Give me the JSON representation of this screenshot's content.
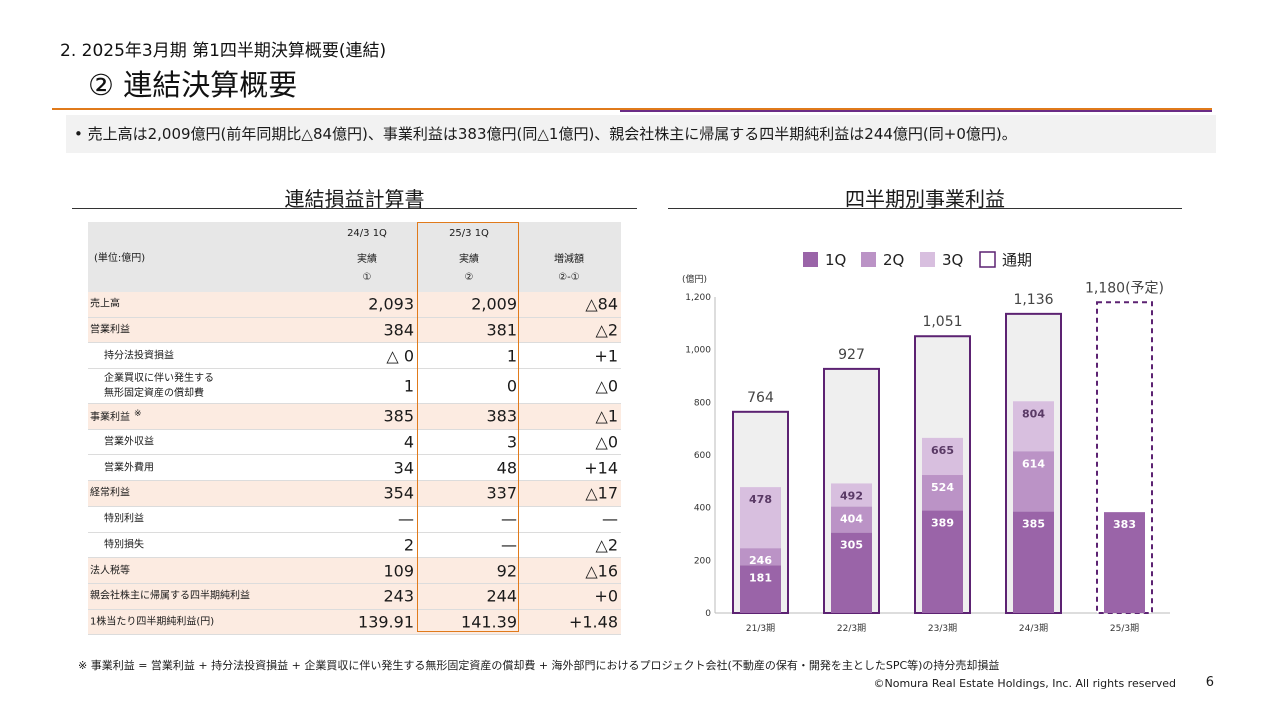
{
  "header": {
    "heading": "2. 2025年3月期 第1四半期決算概要(連結)",
    "title": "② 連結決算概要"
  },
  "summary": "• 売上高は2,009億円(前年同期比△84億円)、事業利益は383億円(同△1億円)、親会社株主に帰属する四半期純利益は244億円(同+0億円)。",
  "table": {
    "title": "連結損益計算書",
    "unit": "(単位:億円)",
    "columns": [
      {
        "period": "24/3 1Q",
        "label": "実績",
        "mark": "①"
      },
      {
        "period": "25/3 1Q",
        "label": "実績",
        "mark": "②"
      },
      {
        "period": "",
        "label": "増減額",
        "mark": "②-①"
      }
    ],
    "rows": [
      {
        "label": "売上高",
        "v1": "2,093",
        "v2": "2,009",
        "v3": "△84",
        "hl": true,
        "indent": false
      },
      {
        "label": "営業利益",
        "v1": "384",
        "v2": "381",
        "v3": "△2",
        "hl": true,
        "indent": false
      },
      {
        "label": "持分法投資損益",
        "v1": "△ 0",
        "v2": "1",
        "v3": "+1",
        "hl": false,
        "indent": true
      },
      {
        "label": "企業買収に伴い発生する\n無形固定資産の償却費",
        "v1": "1",
        "v2": "0",
        "v3": "△0",
        "hl": false,
        "indent": true,
        "tall": true
      },
      {
        "label": "事業利益",
        "mark": "※",
        "v1": "385",
        "v2": "383",
        "v3": "△1",
        "hl": true,
        "indent": false
      },
      {
        "label": "営業外収益",
        "v1": "4",
        "v2": "3",
        "v3": "△0",
        "hl": false,
        "indent": true
      },
      {
        "label": "営業外費用",
        "v1": "34",
        "v2": "48",
        "v3": "+14",
        "hl": false,
        "indent": true
      },
      {
        "label": "経常利益",
        "v1": "354",
        "v2": "337",
        "v3": "△17",
        "hl": true,
        "indent": false
      },
      {
        "label": "特別利益",
        "v1": "—",
        "v2": "—",
        "v3": "—",
        "hl": false,
        "indent": true
      },
      {
        "label": "特別損失",
        "v1": "2",
        "v2": "—",
        "v3": "△2",
        "hl": false,
        "indent": true
      },
      {
        "label": "法人税等",
        "v1": "109",
        "v2": "92",
        "v3": "△16",
        "hl": true,
        "indent": false
      },
      {
        "label": "親会社株主に帰属する四半期純利益",
        "v1": "243",
        "v2": "244",
        "v3": "+0",
        "hl": true,
        "indent": false
      },
      {
        "label": "1株当たり四半期純利益(円)",
        "v1": "139.91",
        "v2": "141.39",
        "v3": "+1.48",
        "hl": true,
        "indent": false
      }
    ]
  },
  "chart_data": {
    "type": "bar",
    "title": "四半期別事業利益",
    "ylabel": "(億円)",
    "ylim": [
      0,
      1200
    ],
    "yticks": [
      0,
      200,
      400,
      600,
      800,
      1000,
      1200
    ],
    "categories": [
      "21/3期",
      "22/3期",
      "23/3期",
      "24/3期",
      "25/3期"
    ],
    "series": [
      {
        "name": "1Q",
        "values": [
          181,
          305,
          389,
          385,
          383
        ]
      },
      {
        "name": "2Q",
        "values": [
          246,
          404,
          524,
          614,
          null
        ]
      },
      {
        "name": "3Q",
        "values": [
          478,
          492,
          665,
          804,
          null
        ]
      },
      {
        "name": "通期",
        "values": [
          764,
          927,
          1051,
          1136,
          1180
        ]
      }
    ],
    "total_labels": [
      "764",
      "927",
      "1,051",
      "1,136",
      "1,180(予定)"
    ],
    "forecast_index": 4,
    "legend_position": "top",
    "colors": {
      "q1": "#9a64a8",
      "q2": "#bb93c6",
      "q3": "#d8bfdf",
      "full_bg": "#efefef",
      "full_border": "#5c2272"
    }
  },
  "footnote": "※ 事業利益 = 営業利益 + 持分法投資損益 + 企業買収に伴い発生する無形固定資産の償却費 + 海外部門におけるプロジェクト会社(不動産の保有・開発を主としたSPC等)の持分売却損益",
  "footer": {
    "copyright": "©Nomura Real Estate Holdings, Inc. All rights reserved",
    "page": "6"
  }
}
